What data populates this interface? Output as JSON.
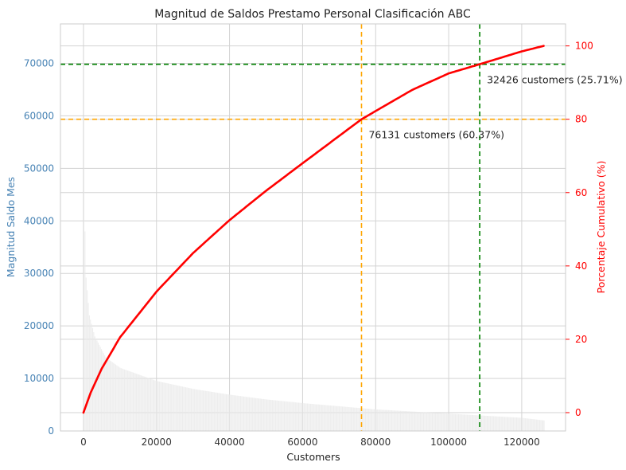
{
  "chart_data": {
    "type": "bar+line",
    "title": "Magnitud de Saldos Prestamo Personal Clasificación ABC",
    "xlabel": "Customers",
    "ylabel_left": "Magnitud Saldo Mes",
    "ylabel_right": "Porcentaje Cumulativo (%)",
    "xlim": [
      -6300,
      132000
    ],
    "ylim_left": [
      0,
      77500
    ],
    "ylim_right": [
      -5,
      106
    ],
    "x_ticks": [
      0,
      20000,
      40000,
      60000,
      80000,
      100000,
      120000
    ],
    "x_tick_labels": [
      "0",
      "20000",
      "40000",
      "60000",
      "80000",
      "100000",
      "120000"
    ],
    "y_left_ticks": [
      0,
      10000,
      20000,
      30000,
      40000,
      50000,
      60000,
      70000
    ],
    "y_left_tick_labels": [
      "0",
      "10000",
      "20000",
      "30000",
      "40000",
      "50000",
      "60000",
      "70000"
    ],
    "y_right_ticks": [
      0,
      20,
      40,
      60,
      80,
      100
    ],
    "y_right_tick_labels": [
      "0",
      "20",
      "40",
      "60",
      "80",
      "100"
    ],
    "grid": true,
    "colors": {
      "bars": "#e9e9e9",
      "cumulative_line": "#ff0000",
      "threshold_80": "#ffa500",
      "threshold_95": "#008000",
      "left_axis": "#4682b4",
      "right_axis": "#ff0000"
    },
    "bars_envelope": {
      "x": [
        0,
        500,
        1500,
        3000,
        6000,
        10000,
        20000,
        30000,
        40000,
        50000,
        60000,
        70000,
        80000,
        90000,
        100000,
        110000,
        120000,
        126000
      ],
      "y": [
        50000,
        30000,
        22000,
        18000,
        14000,
        12000,
        9500,
        8000,
        6900,
        6000,
        5300,
        4700,
        4100,
        3700,
        3300,
        2900,
        2500,
        2000
      ]
    },
    "cumulative": {
      "x": [
        0,
        2000,
        5000,
        10000,
        20000,
        30000,
        40000,
        50000,
        60000,
        76131,
        90000,
        100000,
        108500,
        120000,
        126000
      ],
      "y": [
        0,
        5.5,
        12,
        20.5,
        33,
        43.5,
        52.5,
        60.5,
        68,
        80,
        88,
        92.5,
        95,
        98.5,
        100
      ]
    },
    "thresholds": [
      {
        "x": 76131,
        "pct": 80,
        "color": "#ffa500",
        "label": "76131 customers (60.37%)"
      },
      {
        "x": 108500,
        "pct": 95,
        "color": "#008000",
        "label": "32426 customers (25.71%)"
      }
    ]
  }
}
